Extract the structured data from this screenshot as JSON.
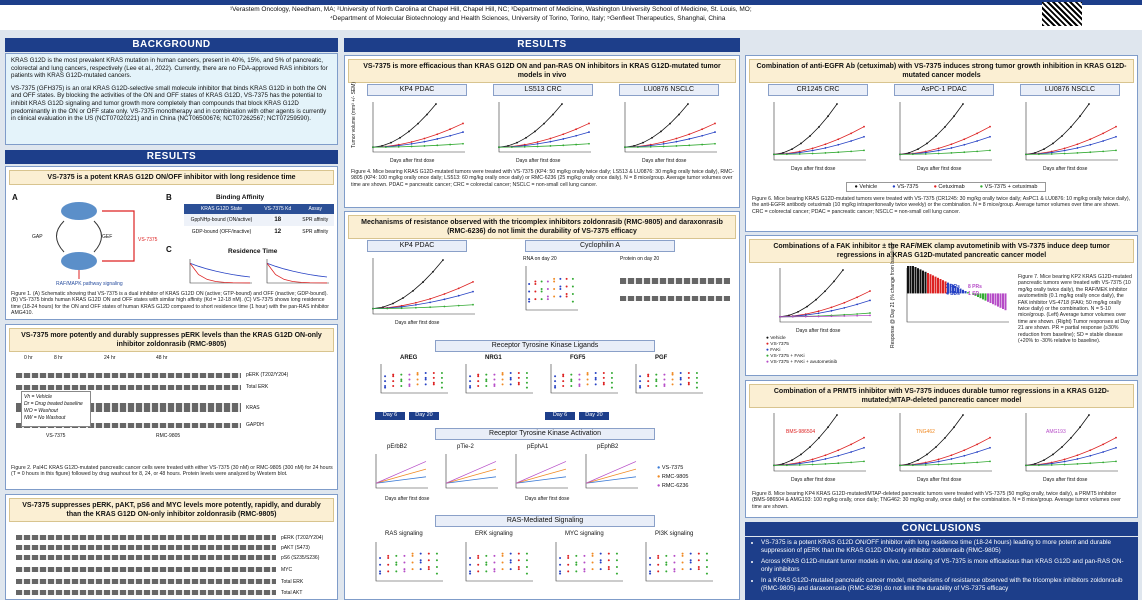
{
  "header": {
    "affiliations": [
      "¹Verastem Oncology, Needham, MA; ²University of North Carolina at Chapel Hill, Chapel Hill, NC; ³Department of Medicine, Washington University School of Medicine, St. Louis, MO;",
      "⁴Department of Molecular Biotechnology and Health Sciences, University of Torino, Torino, Italy; ⁵Genfleet Therapeutics, Shanghai, China"
    ]
  },
  "background": {
    "title": "BACKGROUND",
    "paragraphs": [
      "KRAS G12D is the most prevalent KRAS mutation in human cancers, present in 40%, 15%, and 5% of pancreatic, colorectal and lung cancers, respectively (Lee et al., 2022). Currently, there are no FDA-approved RAS inhibitors for patients with KRAS G12D-mutated cancers.",
      "VS-7375 (GFH375) is an oral KRAS G12D-selective small molecule inhibitor that binds KRAS G12D in both the ON and OFF states. By blocking the activities of the ON and OFF states of KRAS G12D, VS-7375 has the potential to inhibit KRAS G12D signaling and tumor growth more completely than compounds that block KRAS G12D predominantly in the ON or OFF state only. VS-7375 monotherapy and in combination with other agents is currently in clinical evaluation in the US (NCT07020221) and in China (NCT06500676; NCT07262567; NCT07259590)."
    ]
  },
  "results_title": "RESULTS",
  "left": {
    "p1": {
      "title": "VS-7375 is a potent KRAS G12D ON/OFF inhibitor with long residence time",
      "letters": [
        "A",
        "B",
        "C"
      ],
      "schematic": [
        "GAP",
        "GEF",
        "VS-7375",
        "RAF/MAPK pathway signaling"
      ],
      "table_title": "Binding Affinity",
      "table_head": [
        "KRAS G12D State",
        "VS-7375 Kd (nM)",
        "Assay"
      ],
      "table_rows": [
        [
          "GppNHp-bound (ON/active)",
          "18",
          "SPR affinity"
        ],
        [
          "GDP-bound (OFF/inactive)",
          "12",
          "SPR affinity"
        ]
      ],
      "residence": "Residence Time",
      "caption": "Figure 1. (A) Schematic showing that VS-7375 is a dual inhibitor of KRAS G12D ON (active; GTP-bound) and OFF (inactive; GDP-bound). (B) VS-7375 binds human KRAS G12D ON and OFF states with similar high affinity (Kd = 12-18 nM). (C) VS-7375 shows long residence time (18-24 hours) for the ON and OFF states of human KRAS G12D compared to short residence time (1 hour) with the pan-RAS inhibitor AMG410."
    },
    "p2": {
      "title": "VS-7375 more potently and durably suppresses pERK levels than the KRAS G12D ON-only inhibitor zoldonrasib (RMC-9805)",
      "times": [
        "0 hr",
        "8 hr",
        "24 hr",
        "48 hr"
      ],
      "rows": [
        "pERK (T202/Y204)",
        "Total ERK",
        "KRAS",
        "GAPDH"
      ],
      "groups": [
        "VS-7375",
        "RMC-9805"
      ],
      "legend": [
        "Vh = Vehicle",
        "Dr = Drug treated baseline",
        "WO = Washout",
        "NW = No Washout"
      ],
      "caption": "Figure 2. PaI4C KRAS G12D-mutated pancreatic cancer cells were treated with either VS-7375 (30 nM) or RMC-9805 (300 nM) for 24 hours (T = 0 hours in this figure) followed by drug washout for 8, 24, or 48 hours. Protein levels were analyzed by Western blot."
    },
    "p3": {
      "title": "VS-7375 suppresses pERK, pAKT, pS6 and MYC levels more potently, rapidly, and durably than the KRAS G12D ON-only inhibitor zoldonrasib (RMC-9805)",
      "rows": [
        "pERK (T202/Y204)",
        "pAKT (S473)",
        "pS6 (S235/S236)",
        "MYC",
        "Total ERK",
        "Total AKT"
      ]
    }
  },
  "middle": {
    "p1": {
      "title": "VS-7375 is more efficacious than KRAS G12D ON and pan-RAS ON inhibitors in KRAS G12D-mutated tumor models in vivo",
      "models": [
        "KP4 PDAC",
        "LS513 CRC",
        "LU0876 NSCLC"
      ],
      "y_label": "Tumor volume (mm³ +/- SEM)",
      "x_label": "Days after first dose",
      "caption": "Figure 4. Mice bearing KRAS G12D-mutated tumors were treated with VS-7375 (KP4: 50 mg/kg orally twice daily; LS513 & LU0876: 30 mg/kg orally twice daily), RMC-9805 (KP4: 100 mg/kg orally once daily; LS513: 60 mg/kg orally once daily) or RMC-6236 (25 mg/kg orally once daily). N = 8 mice/group. Average tumor volumes over time are shown. PDAC = pancreatic cancer; CRC = colorectal cancer; NSCLC = non-small cell lung cancer."
    },
    "p2": {
      "title": "Mechanisms of resistance observed with the tricomplex inhibitors zoldonrasib (RMC-9805) and daraxonrasib (RMC-6236) do not limit the durability of VS-7375 efficacy",
      "model": "KP4 PDAC",
      "cyclo": "Cyclophilin A",
      "rna": "RNA on day 20",
      "protein": "Protein on day 20",
      "ligands_title": "Receptor Tyrosine Kinase Ligands",
      "ligands": [
        "AREG",
        "NRG1",
        "FGF5",
        "PGF"
      ],
      "days": [
        "Day 6",
        "Day 20"
      ],
      "activation_title": "Receptor Tyrosine Kinase Activation",
      "activation": [
        "pErbB2",
        "pTie-2",
        "pEphA1",
        "pEphB2"
      ],
      "legend": [
        "VS-7375",
        "RMC-9805",
        "RMC-6236"
      ],
      "signaling_title": "RAS-Mediated Signaling",
      "signaling": [
        "RAS signaling",
        "ERK signaling",
        "MYC signaling",
        "PI3K signaling"
      ]
    }
  },
  "right": {
    "p1": {
      "title": "Combination of anti-EGFR Ab (cetuximab) with VS-7375 induces strong tumor growth inhibition in KRAS G12D-mutated cancer models",
      "models": [
        "CR1245 CRC",
        "AsPC-1 PDAC",
        "LU0876 NSCLC"
      ],
      "legend": [
        "Vehicle",
        "VS-7375",
        "Cetuximab",
        "VS-7375 + cetuximab"
      ],
      "caption": "Figure 6. Mice bearing KRAS G12D-mutated tumors were treated with VS-7375 (CR1245: 30 mg/kg orally twice daily; AsPC1 & LU0876: 10 mg/kg orally twice daily), the anti-EGFR antibody cetuximab (10 mg/kg intraperitoneally twice weekly) or the combination. N = 8 mice/group. Average tumor volumes over time are shown. CRC = colorectal cancer; PDAC = pancreatic cancer; NSCLC = non-small cell lung cancer."
    },
    "p2": {
      "title": "Combinations of a FAK inhibitor ± the RAF/MEK clamp avutometinib with VS-7375 induce deep tumor regressions in a KRAS G12D-mutated pancreatic cancer model",
      "legend": [
        "Vehicle",
        "VS-7375",
        "FAKi",
        "VS-7375 + FAKi",
        "VS-7375 + FAKi + avutometinib"
      ],
      "response_label": "Response @ Day 21 (% change from baseline)",
      "notes": [
        "3 PRs",
        "4 SDs",
        "8 PRs",
        "1 SD"
      ],
      "caption": "Figure 7. Mice bearing KP2 KRAS G12D-mutated pancreatic tumors were treated with VS-7375 (10 mg/kg orally twice daily), the RAF/MEK inhibitor avutometinib (0.1 mg/kg orally once daily), the FAK inhibitor VS-4718 (FAKi; 50 mg/kg orally twice daily) or the combination. N = 5-10 mice/group. (Left) Average tumor volumes over time are shown. (Right) Tumor responses at Day 21 are shown. PR = partial response (≥30% reduction from baseline); SD = stable disease (+20% to -30% relative to baseline)."
    },
    "p3": {
      "title": "Combination of a PRMT5 inhibitor with VS-7375 induces durable tumor regressions in a KRAS G12D-mutated;MTAP-deleted pancreatic cancer model",
      "inhibitors": [
        "BMS-986504",
        "TNG462",
        "AMG193"
      ],
      "caption": "Figure 8. Mice bearing KP4 KRAS G12D-mutated/MTAP-deleted pancreatic tumors were treated with VS-7375 (50 mg/kg orally, twice daily), a PRMT5 inhibitor (BMS-986504 & AMG193: 100 mg/kg orally, once daily; TNG462: 30 mg/kg orally, once daily) or the combination. N = 8 mice/group. Average tumor volumes over time are shown."
    },
    "conclusions": {
      "title": "CONCLUSIONS",
      "items": [
        "VS-7375 is a potent KRAS G12D ON/OFF inhibitor with long residence time (18-24 hours) leading to more potent and durable suppression of pERK than the KRAS G12D ON-only inhibitor zoldonrasib (RMC-9805)",
        "Across KRAS G12D-mutant tumor models in vivo, oral dosing of VS-7375 is more efficacious than KRAS G12D and pan-RAS ON-only inhibitors",
        "In a KRAS G12D-mutated pancreatic cancer model, mechanisms of resistance observed with the tricomplex inhibitors zoldonrasib (RMC-9805) and daraxonrasib (RMC-6236) do not limit the durability of VS-7375 efficacy"
      ]
    }
  }
}
